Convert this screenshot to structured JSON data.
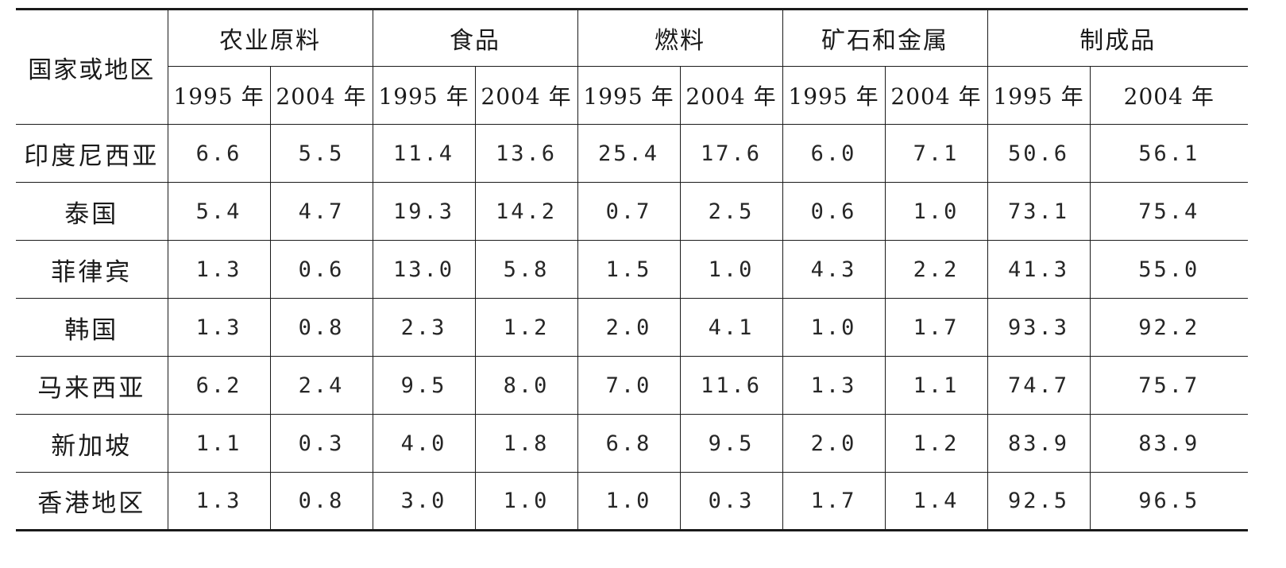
{
  "table": {
    "country_header": "国家或地区",
    "categories": [
      "农业原料",
      "食品",
      "燃料",
      "矿石和金属",
      "制成品"
    ],
    "years": [
      "1995 年",
      "2004 年",
      "1995 年",
      "2004 年",
      "1995 年",
      "2004 年",
      "1995 年",
      "2004 年",
      "1995 年",
      "2004 年"
    ],
    "rows": [
      {
        "name": "印度尼西亚",
        "values": [
          "6.6",
          "5.5",
          "11.4",
          "13.6",
          "25.4",
          "17.6",
          "6.0",
          "7.1",
          "50.6",
          "56.1"
        ]
      },
      {
        "name": "泰国",
        "values": [
          "5.4",
          "4.7",
          "19.3",
          "14.2",
          "0.7",
          "2.5",
          "0.6",
          "1.0",
          "73.1",
          "75.4"
        ]
      },
      {
        "name": "菲律宾",
        "values": [
          "1.3",
          "0.6",
          "13.0",
          "5.8",
          "1.5",
          "1.0",
          "4.3",
          "2.2",
          "41.3",
          "55.0"
        ]
      },
      {
        "name": "韩国",
        "values": [
          "1.3",
          "0.8",
          "2.3",
          "1.2",
          "2.0",
          "4.1",
          "1.0",
          "1.7",
          "93.3",
          "92.2"
        ]
      },
      {
        "name": "马来西亚",
        "values": [
          "6.2",
          "2.4",
          "9.5",
          "8.0",
          "7.0",
          "11.6",
          "1.3",
          "1.1",
          "74.7",
          "75.7"
        ]
      },
      {
        "name": "新加坡",
        "values": [
          "1.1",
          "0.3",
          "4.0",
          "1.8",
          "6.8",
          "9.5",
          "2.0",
          "1.2",
          "83.9",
          "83.9"
        ]
      },
      {
        "name": "香港地区",
        "values": [
          "1.3",
          "0.8",
          "3.0",
          "1.0",
          "1.0",
          "0.3",
          "1.7",
          "1.4",
          "92.5",
          "96.5"
        ]
      }
    ]
  }
}
